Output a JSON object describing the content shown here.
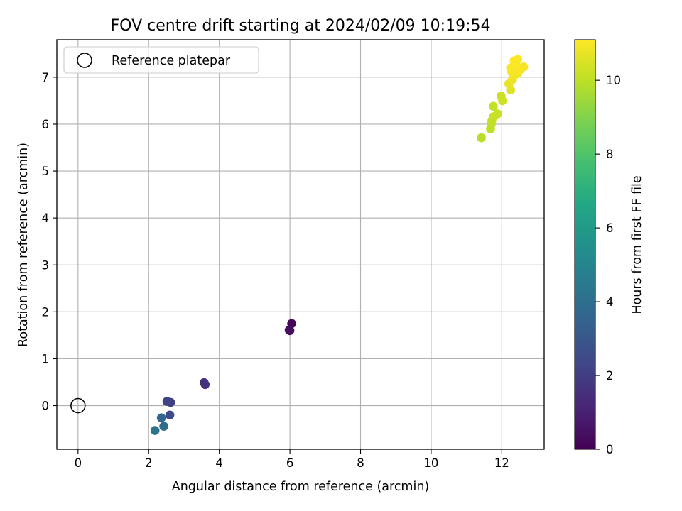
{
  "chart_data": {
    "type": "scatter",
    "title": "FOV centre drift starting at 2024/02/09 10:19:54",
    "xlabel": "Angular distance from reference (arcmin)",
    "ylabel": "Rotation from reference (arcmin)",
    "xlim": [
      -0.6,
      13.2
    ],
    "ylim": [
      -0.93,
      7.8
    ],
    "xticks": [
      0,
      2,
      4,
      6,
      8,
      10,
      12
    ],
    "yticks": [
      0,
      1,
      2,
      3,
      4,
      5,
      6,
      7
    ],
    "grid": true,
    "legend": {
      "position": "top-left",
      "entries": [
        "Reference platepar"
      ]
    },
    "reference_point": {
      "name": "Reference platepar",
      "x": 0,
      "y": 0
    },
    "colorbar": {
      "label": "Hours from first FF file",
      "colormap": "viridis",
      "range": [
        0,
        11.1
      ],
      "ticks": [
        0,
        2,
        4,
        6,
        8,
        10
      ]
    },
    "points": [
      {
        "x": 6.05,
        "y": 1.75,
        "hours": 0.15
      },
      {
        "x": 5.98,
        "y": 1.61,
        "hours": 0.3
      },
      {
        "x": 6.0,
        "y": 1.6,
        "hours": 0.4
      },
      {
        "x": 3.57,
        "y": 0.49,
        "hours": 1.5
      },
      {
        "x": 3.6,
        "y": 0.45,
        "hours": 1.6
      },
      {
        "x": 2.62,
        "y": 0.07,
        "hours": 2.0
      },
      {
        "x": 2.52,
        "y": 0.09,
        "hours": 2.2
      },
      {
        "x": 2.6,
        "y": -0.2,
        "hours": 2.5
      },
      {
        "x": 2.36,
        "y": -0.26,
        "hours": 3.7
      },
      {
        "x": 2.43,
        "y": -0.44,
        "hours": 3.9
      },
      {
        "x": 2.18,
        "y": -0.53,
        "hours": 4.2
      },
      {
        "x": 11.42,
        "y": 5.71,
        "hours": 9.9
      },
      {
        "x": 11.68,
        "y": 5.9,
        "hours": 10.0
      },
      {
        "x": 11.7,
        "y": 6.0,
        "hours": 10.05
      },
      {
        "x": 11.72,
        "y": 6.08,
        "hours": 10.1
      },
      {
        "x": 11.76,
        "y": 6.16,
        "hours": 10.15
      },
      {
        "x": 11.88,
        "y": 6.22,
        "hours": 10.2
      },
      {
        "x": 11.76,
        "y": 6.38,
        "hours": 10.1
      },
      {
        "x": 12.02,
        "y": 6.5,
        "hours": 10.3
      },
      {
        "x": 11.98,
        "y": 6.6,
        "hours": 10.25
      },
      {
        "x": 12.25,
        "y": 6.73,
        "hours": 10.6
      },
      {
        "x": 12.2,
        "y": 6.86,
        "hours": 10.7
      },
      {
        "x": 12.3,
        "y": 6.95,
        "hours": 10.8
      },
      {
        "x": 12.35,
        "y": 7.03,
        "hours": 10.85
      },
      {
        "x": 12.45,
        "y": 7.08,
        "hours": 10.9
      },
      {
        "x": 12.28,
        "y": 7.12,
        "hours": 10.95
      },
      {
        "x": 12.52,
        "y": 7.16,
        "hours": 11.0
      },
      {
        "x": 12.62,
        "y": 7.22,
        "hours": 11.0
      },
      {
        "x": 12.25,
        "y": 7.2,
        "hours": 11.05
      },
      {
        "x": 12.4,
        "y": 7.27,
        "hours": 11.05
      },
      {
        "x": 12.35,
        "y": 7.35,
        "hours": 11.1
      },
      {
        "x": 12.45,
        "y": 7.38,
        "hours": 11.1
      }
    ]
  }
}
